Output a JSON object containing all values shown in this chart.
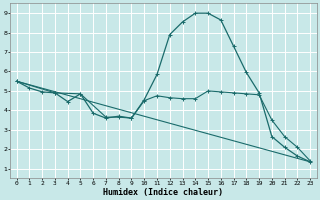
{
  "xlabel": "Humidex (Indice chaleur)",
  "xlim": [
    -0.5,
    23.5
  ],
  "ylim": [
    0.5,
    9.5
  ],
  "xtick_labels": [
    "0",
    "1",
    "2",
    "3",
    "4",
    "5",
    "6",
    "7",
    "8",
    "9",
    "10",
    "11",
    "12",
    "13",
    "14",
    "15",
    "16",
    "17",
    "18",
    "19",
    "20",
    "21",
    "22",
    "23"
  ],
  "xticks": [
    0,
    1,
    2,
    3,
    4,
    5,
    6,
    7,
    8,
    9,
    10,
    11,
    12,
    13,
    14,
    15,
    16,
    17,
    18,
    19,
    20,
    21,
    22,
    23
  ],
  "yticks": [
    1,
    2,
    3,
    4,
    5,
    6,
    7,
    8,
    9
  ],
  "bg_color": "#c8e8e8",
  "grid_color": "#ffffff",
  "line_color": "#1a6b6b",
  "line1_x": [
    0,
    1,
    2,
    3,
    4,
    5,
    6,
    7,
    8,
    9,
    10,
    11,
    12,
    13,
    14,
    15,
    16,
    17,
    18,
    19,
    20,
    21,
    22,
    23
  ],
  "line1_y": [
    5.5,
    5.15,
    4.95,
    4.9,
    4.45,
    4.85,
    3.85,
    3.6,
    3.7,
    3.6,
    4.55,
    5.85,
    7.9,
    8.55,
    9.0,
    9.0,
    8.65,
    7.3,
    5.95,
    4.9,
    2.65,
    2.1,
    1.65,
    1.35
  ],
  "line2_x": [
    0,
    23
  ],
  "line2_y": [
    5.5,
    1.35
  ],
  "line3_x": [
    0,
    3,
    5,
    7,
    8,
    9,
    10,
    11,
    12,
    13,
    14,
    15,
    16,
    17,
    18,
    19,
    20,
    21,
    22,
    23
  ],
  "line3_y": [
    5.5,
    4.9,
    4.85,
    3.65,
    3.65,
    3.6,
    4.5,
    4.75,
    4.65,
    4.6,
    4.6,
    5.0,
    4.95,
    4.9,
    4.85,
    4.8,
    3.5,
    2.65,
    2.1,
    1.4
  ]
}
